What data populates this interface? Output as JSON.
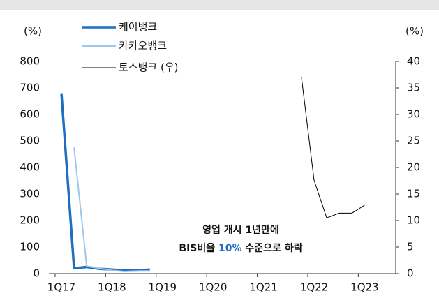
{
  "chart_data": {
    "type": "line",
    "ylabel": "(%)",
    "y2label": "(%)",
    "categories": [
      "1Q17",
      null,
      null,
      null,
      "1Q18",
      null,
      null,
      null,
      "1Q19",
      null,
      null,
      null,
      "1Q20",
      null,
      null,
      null,
      "1Q21",
      null,
      null,
      null,
      "1Q22",
      null,
      null,
      null,
      "1Q23",
      null,
      null
    ],
    "series": [
      {
        "name": "케이뱅크",
        "color": "#1f6fbf",
        "values": [
          680,
          20,
          25,
          18,
          15,
          12,
          12,
          15,
          null,
          null,
          null,
          null,
          null,
          null,
          null,
          null,
          null,
          null,
          null,
          null,
          null,
          null,
          null,
          null,
          null,
          null,
          null
        ]
      },
      {
        "name": "카카오뱅크",
        "color": "#9dc7ec",
        "values": [
          null,
          475,
          28,
          20,
          12,
          8,
          10,
          10,
          null,
          null,
          null,
          null,
          null,
          null,
          null,
          null,
          null,
          null,
          null,
          null,
          null,
          null,
          null,
          null,
          null,
          null,
          null
        ]
      },
      {
        "name": "토스뱅크 (우)",
        "color": "#000000",
        "axis": "y2",
        "values": [
          null,
          null,
          null,
          null,
          null,
          null,
          null,
          null,
          null,
          null,
          null,
          null,
          null,
          null,
          null,
          null,
          null,
          null,
          null,
          37.1,
          17.6,
          10.5,
          11.4,
          11.4,
          12.9,
          null,
          null
        ]
      }
    ],
    "ylim": [
      0,
      800
    ],
    "yticks": [
      0,
      100,
      200,
      300,
      400,
      500,
      600,
      700,
      800
    ],
    "y2lim": [
      0,
      40
    ],
    "y2ticks": [
      0,
      5,
      10,
      15,
      20,
      25,
      30,
      35,
      40
    ],
    "annotations": [
      "영업 개시 1년만에",
      "BIS비율",
      "10%",
      "수준으로 하락"
    ],
    "annotation_highlight_color": "#1f6fbf"
  }
}
